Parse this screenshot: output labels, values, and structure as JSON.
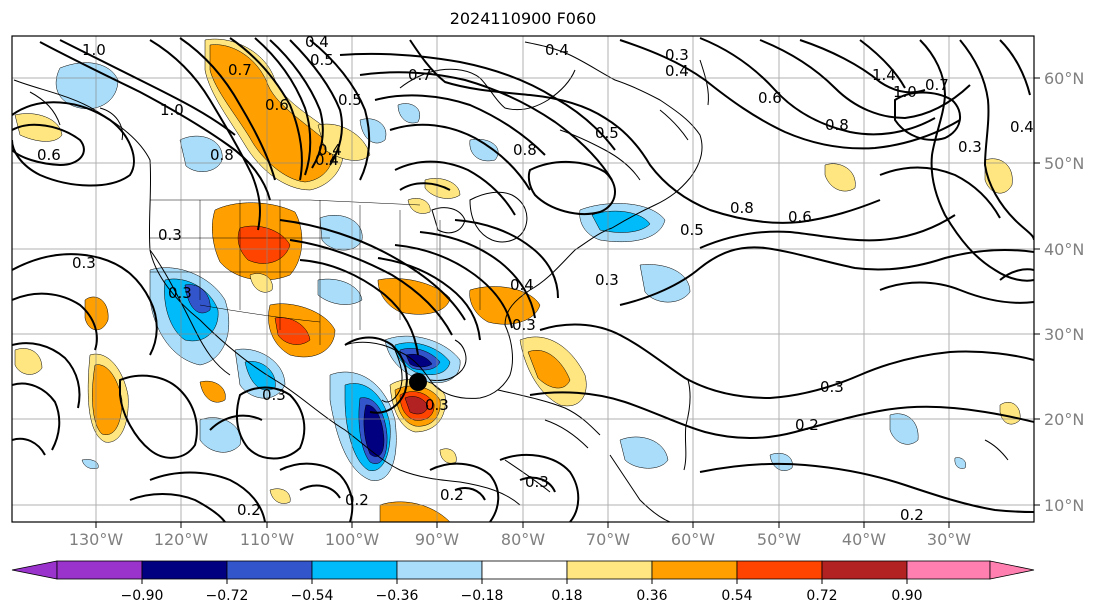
{
  "title": "2024110900 F060",
  "map": {
    "lon_labels": [
      "130°W",
      "120°W",
      "110°W",
      "100°W",
      "90°W",
      "80°W",
      "70°W",
      "60°W",
      "50°W",
      "40°W",
      "30°W"
    ],
    "lat_labels": [
      "60°N",
      "50°N",
      "40°N",
      "30°N",
      "20°N",
      "10°N"
    ],
    "contour_labels": [
      "1.0",
      "0.4",
      "0.5",
      "0.4",
      "0.3",
      "0.4",
      "0.6",
      "0.7",
      "0.5",
      "0.8",
      "0.4",
      "1.0",
      "0.5",
      "0.8",
      "0.7",
      "0.6",
      "0.5",
      "0.3",
      "0.3",
      "0.3",
      "0.4",
      "0.3",
      "0.3",
      "0.2",
      "0.2",
      "0.2",
      "0.3",
      "0.2",
      "0.2",
      "1.4",
      "1.0",
      "0.7",
      "0.3",
      "0.4",
      "0.8",
      "0.6",
      "0.8",
      "0.4",
      "0.6",
      "0.3",
      "0.3",
      "0.3"
    ],
    "colors": {
      "n090": "#9933cc",
      "n072": "#000080",
      "n054": "#3355cc",
      "n036": "#00bbf9",
      "n018": "#aaddf9",
      "zero": "#ffffff",
      "p018": "#ffe680",
      "p036": "#ffa000",
      "p054": "#ff4400",
      "p072": "#b22222",
      "p090": "#ff80b0"
    }
  },
  "colorbar": {
    "ticks": [
      "−0.90",
      "−0.72",
      "−0.54",
      "−0.36",
      "−0.18",
      "0.18",
      "0.36",
      "0.54",
      "0.72",
      "0.90"
    ]
  }
}
